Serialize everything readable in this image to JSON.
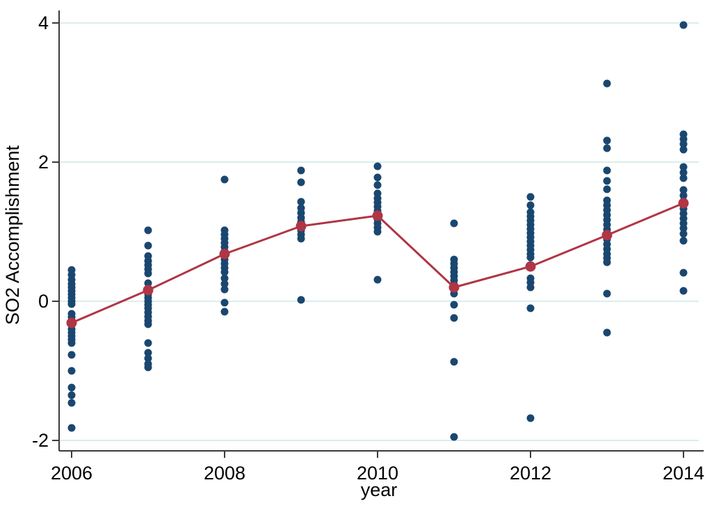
{
  "chart_data": {
    "type": "scatter",
    "title": "",
    "xlabel": "year",
    "ylabel": "SO2 Accomplishment",
    "xlim": [
      2005.8,
      2014.25
    ],
    "ylim": [
      -2.15,
      4.15
    ],
    "x_ticks": [
      "2006",
      "2008",
      "2010",
      "2012",
      "2014"
    ],
    "x_tick_years": [
      2006,
      2008,
      2010,
      2012,
      2014
    ],
    "y_ticks": [
      "4",
      "2",
      "0",
      "-2"
    ],
    "y_tick_values": [
      4,
      2,
      0,
      -2
    ],
    "grid": "horizontal_gridlines_only",
    "legend": "none",
    "colors": {
      "scatter": "#1a476f",
      "mean_line": "#b03545",
      "grid": "#d9eeee",
      "axis": "#3a3a3a",
      "background": "#ffffff"
    },
    "series": [
      {
        "name": "firm observations",
        "type": "scatter",
        "color": "#1a476f",
        "groups": [
          {
            "year": 2006,
            "values": [
              0.45,
              0.38,
              0.31,
              0.25,
              0.2,
              0.15,
              0.1,
              0.05,
              0.0,
              -0.04,
              -0.18,
              -0.23,
              -0.28,
              -0.33,
              -0.4,
              -0.45,
              -0.5,
              -0.55,
              -0.6,
              -0.77,
              -1.0,
              -1.24,
              -1.35,
              -1.46,
              -1.82
            ]
          },
          {
            "year": 2007,
            "values": [
              1.02,
              0.8,
              0.65,
              0.58,
              0.52,
              0.46,
              0.4,
              0.26,
              0.1,
              0.05,
              0.0,
              -0.05,
              -0.1,
              -0.16,
              -0.22,
              -0.28,
              -0.33,
              -0.6,
              -0.74,
              -0.82,
              -0.9,
              -0.95
            ]
          },
          {
            "year": 2008,
            "values": [
              1.75,
              1.02,
              0.96,
              0.9,
              0.84,
              0.78,
              0.72,
              0.66,
              0.6,
              0.54,
              0.48,
              0.42,
              0.33,
              0.25,
              0.17,
              -0.02,
              -0.15
            ]
          },
          {
            "year": 2009,
            "values": [
              1.88,
              1.71,
              1.43,
              1.34,
              1.27,
              1.2,
              1.14,
              1.08,
              1.02,
              0.96,
              0.9,
              0.02
            ]
          },
          {
            "year": 2010,
            "values": [
              1.94,
              1.78,
              1.67,
              1.55,
              1.48,
              1.42,
              1.36,
              1.3,
              1.24,
              1.18,
              1.12,
              1.06,
              1.0,
              0.31
            ]
          },
          {
            "year": 2011,
            "values": [
              1.12,
              0.6,
              0.54,
              0.48,
              0.42,
              0.36,
              0.3,
              0.24,
              0.18,
              0.11,
              -0.05,
              -0.24,
              -0.87,
              -1.95
            ]
          },
          {
            "year": 2012,
            "values": [
              1.5,
              1.38,
              1.28,
              1.22,
              1.16,
              1.1,
              1.04,
              0.98,
              0.92,
              0.86,
              0.8,
              0.74,
              0.68,
              0.63,
              0.33,
              0.27,
              0.2,
              -0.1,
              -1.68
            ]
          },
          {
            "year": 2013,
            "values": [
              3.13,
              2.31,
              2.2,
              1.88,
              1.73,
              1.61,
              1.45,
              1.38,
              1.31,
              1.24,
              1.17,
              1.1,
              1.03,
              0.96,
              0.89,
              0.82,
              0.75,
              0.68,
              0.62,
              0.56,
              0.11,
              -0.45
            ]
          },
          {
            "year": 2014,
            "values": [
              3.97,
              2.4,
              2.33,
              2.26,
              2.18,
              1.93,
              1.85,
              1.77,
              1.6,
              1.52,
              1.44,
              1.33,
              1.26,
              1.19,
              1.12,
              1.05,
              0.97,
              0.87,
              0.41,
              0.15
            ]
          }
        ]
      },
      {
        "name": "yearly mean",
        "type": "line_with_markers",
        "color": "#b03545",
        "x": [
          2006,
          2007,
          2008,
          2009,
          2010,
          2011,
          2012,
          2013,
          2014
        ],
        "y": [
          -0.31,
          0.16,
          0.68,
          1.08,
          1.23,
          0.2,
          0.5,
          0.95,
          1.41
        ]
      }
    ]
  }
}
